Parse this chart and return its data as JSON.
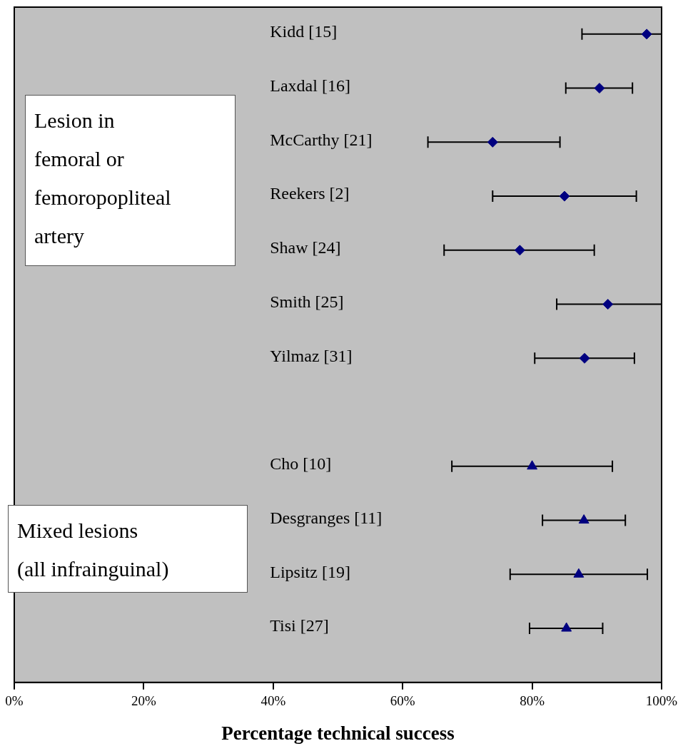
{
  "chart_data": {
    "type": "scatter",
    "xlabel": "Percentage technical success",
    "categories": [
      "Kidd [15]",
      "Laxdal [16]",
      "McCarthy [21]",
      "Reekers [2]",
      "Shaw [24]",
      "Smith [25]",
      "Yilmaz [31]",
      null,
      "Cho [10]",
      "Desgranges [11]",
      "Lipsitz [19]",
      "Tisi [27]"
    ],
    "series": [
      {
        "color": "#000080",
        "marker": "diamond",
        "values": [
          97.7,
          90.4,
          73.9,
          85.0,
          78.1,
          91.7,
          88.1,
          null,
          null,
          null,
          null,
          null
        ],
        "errors": [
          [
            87.7,
            100
          ],
          [
            85.2,
            95.5
          ],
          [
            63.9,
            84.3
          ],
          [
            73.9,
            96.1
          ],
          [
            66.4,
            89.6
          ],
          [
            83.8,
            100
          ],
          [
            80.4,
            95.8
          ],
          null,
          null,
          null,
          null,
          null
        ]
      },
      {
        "color": "#000080",
        "marker": "triangle",
        "values": [
          null,
          null,
          null,
          null,
          null,
          null,
          null,
          null,
          80.0,
          88.0,
          87.2,
          85.3
        ],
        "errors": [
          null,
          null,
          null,
          null,
          null,
          null,
          null,
          null,
          [
            67.6,
            92.4
          ],
          [
            81.6,
            94.4
          ],
          [
            76.6,
            97.8
          ],
          [
            79.6,
            90.9
          ]
        ]
      }
    ],
    "xlim": [
      0,
      100
    ],
    "xticks": [
      {
        "value": 0,
        "label": "0%"
      },
      {
        "value": 20,
        "label": "20%"
      },
      {
        "value": 40,
        "label": "40%"
      },
      {
        "value": 60,
        "label": "60%"
      },
      {
        "value": 80,
        "label": "80%"
      },
      {
        "value": 100,
        "label": "100%"
      }
    ],
    "annotations": [
      "Lesion in\nfemoral or\nfemoropopliteal\nartery",
      "Mixed lesions\n(all infrainguinal)"
    ],
    "orientation": "horizontal",
    "grid": false,
    "legend": false
  }
}
